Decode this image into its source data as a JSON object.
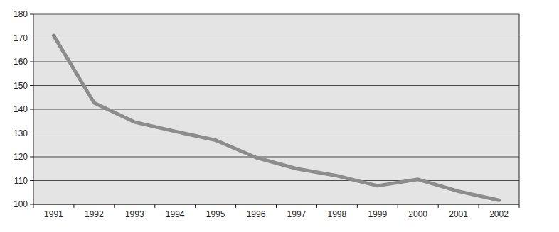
{
  "chart_data": {
    "type": "line",
    "categories": [
      "1991",
      "1992",
      "1993",
      "1994",
      "1995",
      "1996",
      "1997",
      "1998",
      "1999",
      "2000",
      "2001",
      "2002"
    ],
    "values": [
      171,
      142.7,
      134.6,
      130.7,
      127,
      119.7,
      115,
      112,
      107.8,
      110.5,
      105.5,
      101.7
    ],
    "color": "#8c8c8c",
    "ylim": [
      100,
      180
    ],
    "yticks": [
      100,
      110,
      120,
      130,
      140,
      150,
      160,
      170,
      180
    ],
    "grid": true
  }
}
